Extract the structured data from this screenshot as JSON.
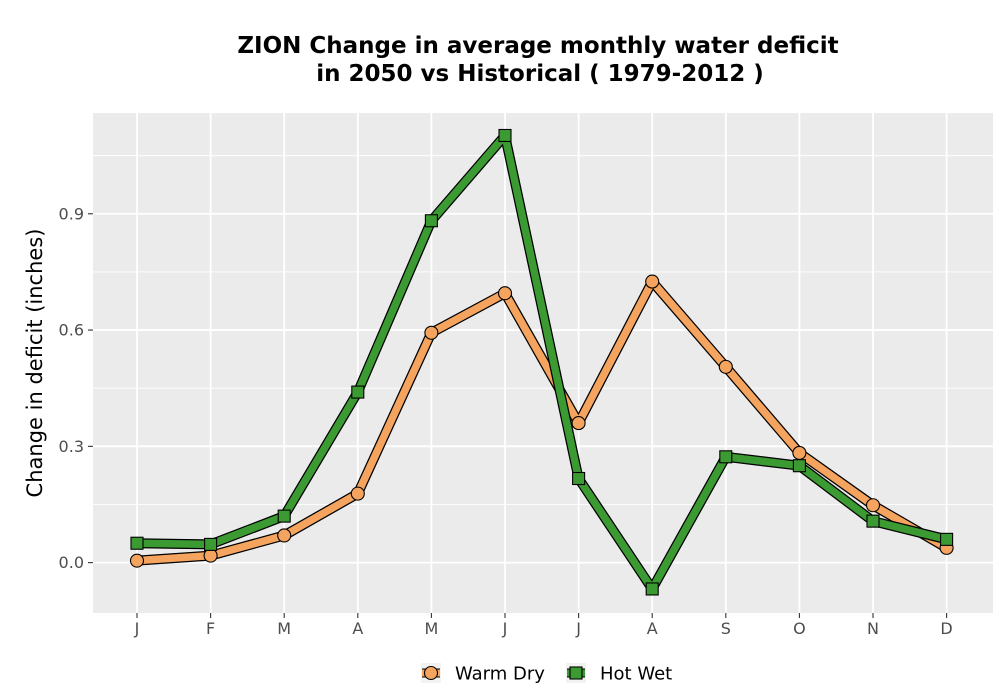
{
  "chart_data": {
    "type": "line",
    "title_line1": "ZION  Change in average monthly water deficit",
    "title_line2": "in 2050 vs Historical ( 1979-2012 )",
    "xlabel": "",
    "ylabel": "Change in deficit (inches)",
    "categories": [
      "J",
      "F",
      "M",
      "A",
      "M",
      "J",
      "J",
      "A",
      "S",
      "O",
      "N",
      "D"
    ],
    "yticks": [
      "0.0",
      "0.3",
      "0.6",
      "0.9"
    ],
    "ylim": [
      -0.13,
      1.16
    ],
    "grid": true,
    "legend_position": "bottom",
    "series": [
      {
        "name": "Warm Dry",
        "color": "#f4a45e",
        "marker": "circle",
        "values": [
          0.005,
          0.018,
          0.07,
          0.178,
          0.593,
          0.695,
          0.36,
          0.725,
          0.505,
          0.283,
          0.148,
          0.038
        ]
      },
      {
        "name": "Hot Wet",
        "color": "#3b9a32",
        "marker": "square",
        "values": [
          0.05,
          0.047,
          0.12,
          0.44,
          0.882,
          1.102,
          0.217,
          -0.068,
          0.273,
          0.25,
          0.107,
          0.06
        ]
      }
    ]
  }
}
